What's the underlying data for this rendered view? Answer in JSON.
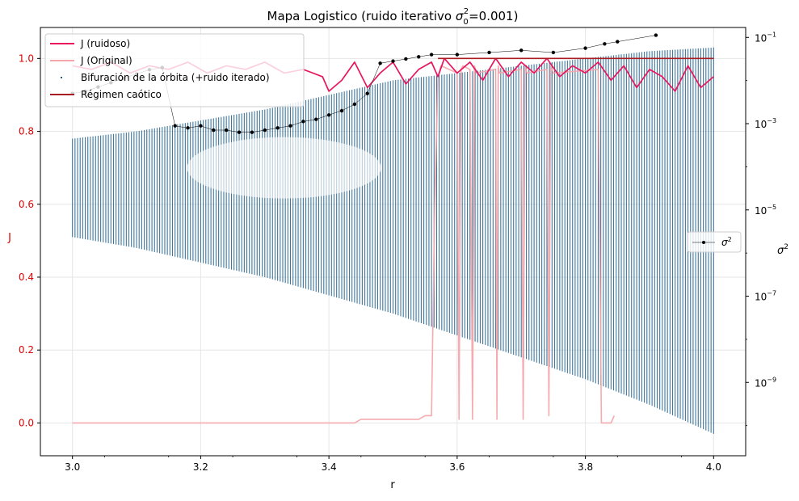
{
  "chart_data": {
    "type": "line",
    "title": "Mapa Logistico (ruido iterativo σ₀²=0.001)",
    "title_parts": {
      "prefix": "Mapa Logistico (ruido iterativo ",
      "sigma": "σ",
      "sub": "0",
      "sup": "2",
      "suffix": "=0.001)"
    },
    "xlabel": "r",
    "ylabel_left": "J",
    "ylabel_right_base": "σ",
    "ylabel_right_sup": "2",
    "xlim": [
      2.95,
      4.05
    ],
    "ylim_left": [
      -0.09,
      1.085
    ],
    "ylim_right_log10": [
      -10.7,
      -0.77
    ],
    "x_ticks": [
      {
        "value": 3.0,
        "label": "3.0"
      },
      {
        "value": 3.2,
        "label": "3.2"
      },
      {
        "value": 3.4,
        "label": "3.4"
      },
      {
        "value": 3.6,
        "label": "3.6"
      },
      {
        "value": 3.8,
        "label": "3.8"
      },
      {
        "value": 4.0,
        "label": "4.0"
      }
    ],
    "y_ticks_left": [
      {
        "value": 0.0,
        "label": "0.0"
      },
      {
        "value": 0.2,
        "label": "0.2"
      },
      {
        "value": 0.4,
        "label": "0.4"
      },
      {
        "value": 0.6,
        "label": "0.6"
      },
      {
        "value": 0.8,
        "label": "0.8"
      },
      {
        "value": 1.0,
        "label": "1.0"
      }
    ],
    "y_ticks_right": [
      {
        "exp": -1,
        "base": "10",
        "sup": "−1"
      },
      {
        "exp": -3,
        "base": "10",
        "sup": "−3"
      },
      {
        "exp": -5,
        "base": "10",
        "sup": "−5"
      },
      {
        "exp": -7,
        "base": "10",
        "sup": "−7"
      },
      {
        "exp": -9,
        "base": "10",
        "sup": "−9"
      }
    ],
    "grid": true,
    "legend_main": {
      "placement": "upper-left",
      "entries": [
        {
          "label": "J (ruidoso)",
          "color": "#e8175d",
          "style": "line"
        },
        {
          "label": "J (Original)",
          "color": "#f4a6ab",
          "style": "line"
        },
        {
          "label": "Bifuración de la órbita (+ruido iterado)",
          "color": "#1f5f8b",
          "style": "dot"
        },
        {
          "label": "Régimen caótico",
          "color": "#a91d22",
          "style": "line"
        }
      ]
    },
    "legend_right": {
      "placement": "center-right",
      "label_base": "σ",
      "label_sup": "2",
      "color": "#000000"
    },
    "series": [
      {
        "name": "J (ruidoso)",
        "color": "#e8175d",
        "x": [
          3.0,
          3.03,
          3.06,
          3.09,
          3.12,
          3.15,
          3.18,
          3.21,
          3.24,
          3.27,
          3.3,
          3.33,
          3.36,
          3.39,
          3.4,
          3.42,
          3.44,
          3.46,
          3.48,
          3.5,
          3.52,
          3.54,
          3.56,
          3.57,
          3.58,
          3.6,
          3.62,
          3.64,
          3.66,
          3.68,
          3.7,
          3.72,
          3.74,
          3.76,
          3.78,
          3.8,
          3.82,
          3.84,
          3.86,
          3.88,
          3.9,
          3.92,
          3.94,
          3.96,
          3.98,
          4.0
        ],
        "values": [
          0.98,
          0.97,
          0.99,
          0.96,
          0.98,
          0.97,
          0.99,
          0.96,
          0.98,
          0.97,
          0.99,
          0.96,
          0.97,
          0.95,
          0.91,
          0.94,
          0.99,
          0.92,
          0.96,
          0.99,
          0.93,
          0.97,
          0.99,
          0.95,
          1.0,
          0.96,
          0.99,
          0.94,
          1.0,
          0.95,
          0.99,
          0.96,
          1.0,
          0.95,
          0.98,
          0.96,
          0.99,
          0.94,
          0.98,
          0.92,
          0.97,
          0.95,
          0.91,
          0.98,
          0.92,
          0.95
        ]
      },
      {
        "name": "J (Original)",
        "color": "#f4a6ab",
        "x": [
          3.0,
          3.44,
          3.45,
          3.54,
          3.55,
          3.56,
          3.565,
          3.57,
          3.575,
          3.6,
          3.603,
          3.606,
          3.609,
          3.62,
          3.624,
          3.627,
          3.63,
          3.66,
          3.662,
          3.664,
          3.666,
          3.7,
          3.703,
          3.706,
          3.709,
          3.74,
          3.743,
          3.746,
          3.75,
          3.82,
          3.825,
          3.83,
          3.835,
          3.84,
          3.845
        ],
        "values": [
          0.0,
          0.0,
          0.01,
          0.01,
          0.02,
          0.02,
          0.6,
          0.95,
          0.98,
          0.96,
          0.01,
          0.97,
          0.98,
          0.97,
          0.01,
          0.98,
          0.96,
          0.97,
          0.01,
          0.98,
          0.96,
          0.97,
          0.01,
          0.98,
          0.96,
          0.97,
          0.02,
          0.98,
          0.96,
          0.97,
          0.0,
          0.0,
          0.0,
          0.0,
          0.02
        ]
      },
      {
        "name": "Régimen caótico",
        "color": "#a91d22",
        "x": [
          3.57,
          4.0
        ],
        "values": [
          1.0,
          1.0
        ]
      },
      {
        "name": "Bifuración de la órbita (+ruido iterado)",
        "color": "#1f5f8b",
        "x": [
          3.0,
          3.1,
          3.2,
          3.3,
          3.4,
          3.5,
          3.6,
          3.7,
          3.8,
          3.9,
          4.0
        ],
        "upper": [
          0.78,
          0.8,
          0.83,
          0.86,
          0.9,
          0.94,
          0.96,
          0.98,
          1.0,
          1.02,
          1.03
        ],
        "lower": [
          0.51,
          0.48,
          0.44,
          0.4,
          0.35,
          0.3,
          0.24,
          0.18,
          0.12,
          0.05,
          -0.03
        ]
      },
      {
        "name": "σ²",
        "color": "#000000",
        "axis": "right-log",
        "x": [
          3.0,
          3.02,
          3.04,
          3.06,
          3.08,
          3.1,
          3.12,
          3.14,
          3.16,
          3.18,
          3.2,
          3.22,
          3.24,
          3.26,
          3.28,
          3.3,
          3.32,
          3.34,
          3.36,
          3.38,
          3.4,
          3.42,
          3.44,
          3.46,
          3.48,
          3.5,
          3.52,
          3.54,
          3.56,
          3.6,
          3.65,
          3.7,
          3.75,
          3.8,
          3.83,
          3.85,
          3.91
        ],
        "log10_values": [
          -2.3,
          -2.25,
          -2.15,
          -2.05,
          -1.95,
          -1.85,
          -1.75,
          -1.7,
          -3.05,
          -3.1,
          -3.05,
          -3.15,
          -3.15,
          -3.2,
          -3.2,
          -3.15,
          -3.1,
          -3.05,
          -2.95,
          -2.9,
          -2.8,
          -2.7,
          -2.55,
          -2.3,
          -1.6,
          -1.55,
          -1.5,
          -1.45,
          -1.4,
          -1.4,
          -1.35,
          -1.3,
          -1.35,
          -1.25,
          -1.15,
          -1.1,
          -0.95
        ]
      }
    ]
  }
}
